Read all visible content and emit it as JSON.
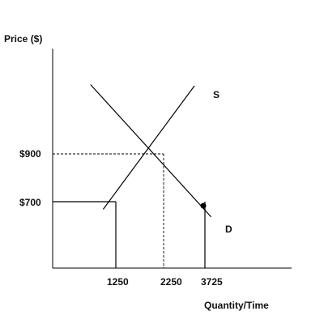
{
  "chart_data": {
    "type": "line",
    "title": "",
    "ylabel": "Price ($)",
    "xlabel": "Quantity/Time",
    "y_tick_labels": [
      {
        "value": 900,
        "label": "$900"
      },
      {
        "value": 700,
        "label": "$700"
      }
    ],
    "x_tick_labels": [
      {
        "value": 1250,
        "label": "1250"
      },
      {
        "value": 2250,
        "label": "2250"
      },
      {
        "value": 3725,
        "label": "3725"
      }
    ],
    "series": [
      {
        "name": "S",
        "points": [
          [
            1000,
            620
          ],
          [
            3350,
            1180
          ]
        ]
      },
      {
        "name": "D",
        "points": [
          [
            750,
            1185
          ],
          [
            3850,
            540
          ]
        ]
      }
    ],
    "reference_lines": [
      {
        "kind": "dashed",
        "points": [
          [
            0,
            900
          ],
          [
            2250,
            900
          ],
          [
            2250,
            0
          ]
        ]
      },
      {
        "kind": "solid",
        "points": [
          [
            0,
            700
          ],
          [
            1250,
            700
          ],
          [
            1250,
            0
          ]
        ]
      },
      {
        "kind": "solid",
        "points": [
          [
            3725,
            0
          ],
          [
            3725,
            700
          ]
        ]
      }
    ],
    "marked_point": {
      "x": 3725,
      "y": 700
    },
    "grid": false,
    "legend": "none"
  }
}
